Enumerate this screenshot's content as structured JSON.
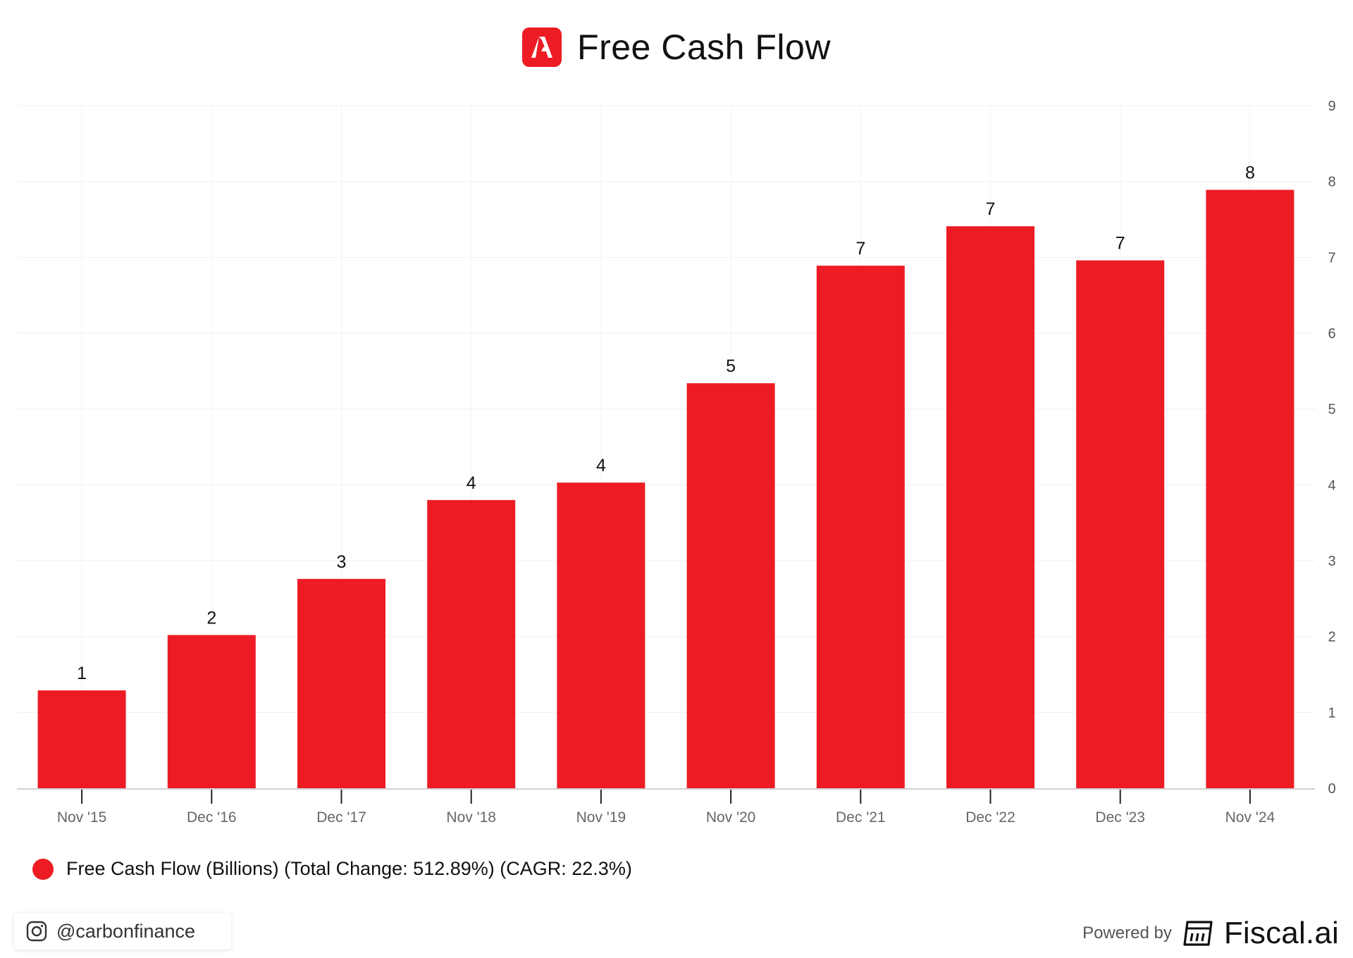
{
  "header": {
    "title": "Free Cash Flow",
    "logo_icon": "adobe-logo-icon",
    "accent_color": "#ed1c24"
  },
  "chart_data": {
    "type": "bar",
    "title": "Free Cash Flow",
    "categories": [
      "Nov '15",
      "Dec '16",
      "Dec '17",
      "Nov '18",
      "Nov '19",
      "Nov '20",
      "Dec '21",
      "Dec '22",
      "Dec '23",
      "Nov '24"
    ],
    "series": [
      {
        "name": "Free Cash Flow (Billions) (Total Change: 512.89%) (CAGR: 22.3%)",
        "values": [
          1.29,
          2.02,
          2.76,
          3.8,
          4.03,
          5.34,
          6.89,
          7.41,
          6.96,
          7.89
        ],
        "data_labels": [
          "1",
          "2",
          "3",
          "4",
          "4",
          "5",
          "7",
          "7",
          "7",
          "8"
        ],
        "color": "#ed1c24"
      }
    ],
    "ylim": [
      0,
      9
    ],
    "yticks": [
      0,
      1,
      2,
      3,
      4,
      5,
      6,
      7,
      8,
      9
    ],
    "y_axis_side": "right",
    "grid": true,
    "xlabel": "",
    "ylabel": "",
    "legend_position": "bottom-left"
  },
  "legend": {
    "label": "Free Cash Flow (Billions) (Total Change: 512.89%) (CAGR: 22.3%)"
  },
  "footer": {
    "social_icon": "instagram-icon",
    "handle": "@carbonfinance",
    "powered_by": "Powered by",
    "brand_icon": "fiscal-ai-logo-icon",
    "brand": "Fiscal.ai"
  }
}
